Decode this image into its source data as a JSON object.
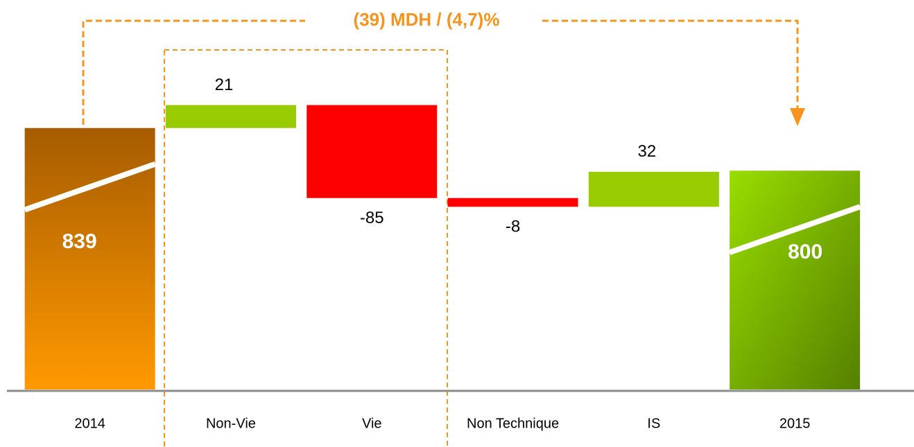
{
  "chart_data": {
    "type": "waterfall",
    "annotation": "(39) MDH / (4,7)%",
    "categories": [
      "2014",
      "Non-Vie",
      "Vie",
      "Non Technique",
      "IS",
      "2015"
    ],
    "values": [
      839,
      21,
      -85,
      -8,
      32,
      800
    ],
    "is_total": [
      true,
      false,
      false,
      false,
      false,
      true
    ],
    "ylim": [
      600,
      880
    ],
    "increase_color": "#99cc00",
    "decrease_color": "#ff0000",
    "total_colors": [
      [
        "#a65c00",
        "#ff9900"
      ],
      [
        "#99dd00",
        "#558000"
      ]
    ],
    "annotation_color": "#f7941d",
    "grid": false
  }
}
